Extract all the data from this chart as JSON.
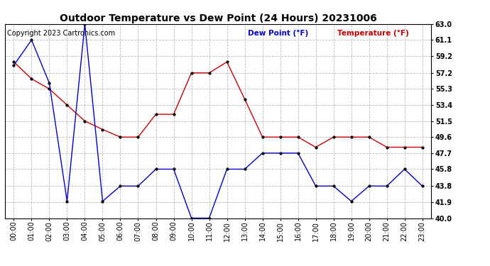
{
  "title": "Outdoor Temperature vs Dew Point (24 Hours) 20231006",
  "copyright": "Copyright 2023 Cartronics.com",
  "legend_dew": "Dew Point (°F)",
  "legend_temp": "Temperature (°F)",
  "hours": [
    "00:00",
    "01:00",
    "02:00",
    "03:00",
    "04:00",
    "05:00",
    "06:00",
    "07:00",
    "08:00",
    "09:00",
    "10:00",
    "11:00",
    "12:00",
    "13:00",
    "14:00",
    "15:00",
    "16:00",
    "17:00",
    "18:00",
    "19:00",
    "20:00",
    "21:00",
    "22:00",
    "23:00"
  ],
  "temperature": [
    58.5,
    56.5,
    55.3,
    53.4,
    51.5,
    50.5,
    49.6,
    49.6,
    52.3,
    52.3,
    57.2,
    57.2,
    58.5,
    54.1,
    49.6,
    49.6,
    49.6,
    48.4,
    49.6,
    49.6,
    49.6,
    48.4,
    48.4,
    48.4
  ],
  "dew_point": [
    58.1,
    61.1,
    56.0,
    42.0,
    63.0,
    42.0,
    43.8,
    43.8,
    45.8,
    45.8,
    40.0,
    40.0,
    45.8,
    45.8,
    47.7,
    47.7,
    47.7,
    43.8,
    43.8,
    42.0,
    43.8,
    43.8,
    45.8,
    43.8
  ],
  "ylim": [
    40.0,
    63.0
  ],
  "yticks": [
    40.0,
    41.9,
    43.8,
    45.8,
    47.7,
    49.6,
    51.5,
    53.4,
    55.3,
    57.2,
    59.2,
    61.1,
    63.0
  ],
  "bg_color": "#ffffff",
  "grid_color": "#bbbbbb",
  "temp_color": "#cc0000",
  "dew_color": "#0000cc",
  "marker_color": "#000000",
  "title_fontsize": 10,
  "label_fontsize": 7,
  "copyright_fontsize": 7,
  "legend_fontsize": 7.5
}
